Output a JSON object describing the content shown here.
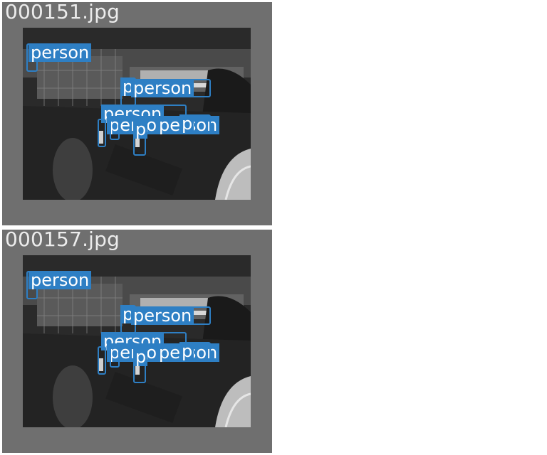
{
  "panels": [
    {
      "filename": "000151.jpg",
      "detections": [
        {
          "label": "person"
        },
        {
          "label": "person"
        },
        {
          "label": "person"
        },
        {
          "label": "person"
        },
        {
          "label": "person"
        },
        {
          "label": "person"
        },
        {
          "label": "person"
        },
        {
          "label": "person"
        }
      ]
    },
    {
      "filename": "000157.jpg",
      "detections": [
        {
          "label": "person"
        },
        {
          "label": "person"
        },
        {
          "label": "person"
        },
        {
          "label": "person"
        },
        {
          "label": "person"
        },
        {
          "label": "person"
        },
        {
          "label": "person"
        },
        {
          "label": "person"
        }
      ]
    }
  ],
  "colors": {
    "panel_background": "#6f6f6f",
    "detection_box": "#2e7fc4",
    "title_text": "#ececec"
  }
}
